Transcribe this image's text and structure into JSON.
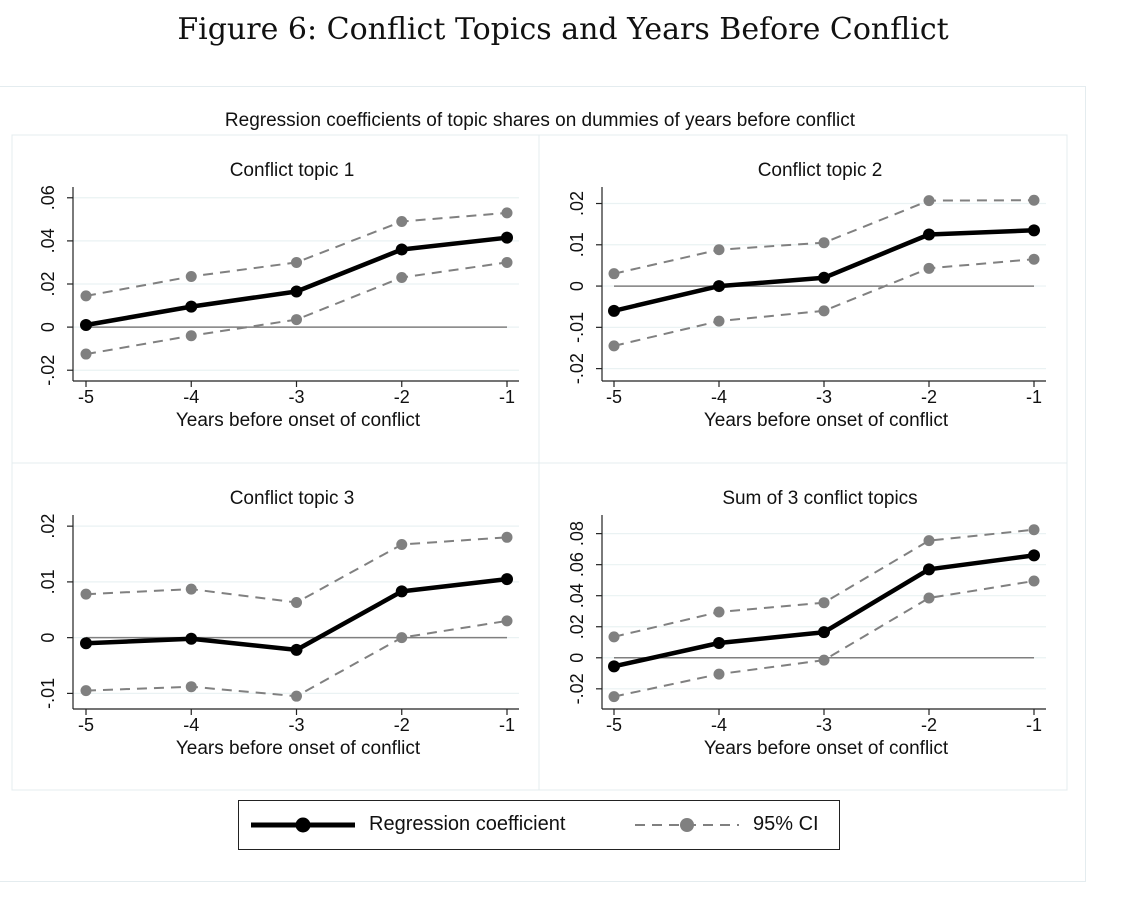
{
  "figure_title": "Figure 6: Conflict Topics and Years Before Conflict",
  "overall_title": "Regression coefficients of topic shares on dummies of years before conflict",
  "legend": {
    "coef_label": "Regression coefficient",
    "ci_label": "95% CI",
    "position": "bottom"
  },
  "colors": {
    "coefficient": "#000000",
    "ci": "#808080",
    "zero_line": "#7f7f7f",
    "gridline": "#eaf2f3",
    "panel_border": "#e4ecef"
  },
  "chart_data": [
    {
      "type": "line",
      "title": "Conflict topic 1",
      "xlabel": "Years before onset of conflict",
      "ylabel": "",
      "x": [
        -5,
        -4,
        -3,
        -2,
        -1
      ],
      "xticks": [
        "-5",
        "-4",
        "-3",
        "-2",
        "-1"
      ],
      "ylim": [
        -0.025,
        0.065
      ],
      "yticks": [
        -0.02,
        0,
        0.02,
        0.04,
        0.06
      ],
      "ytick_labels": [
        "-.02",
        "0",
        ".02",
        ".04",
        ".06"
      ],
      "grid": true,
      "series": [
        {
          "name": "Regression coefficient",
          "role": "coef",
          "values": [
            0.001,
            0.0095,
            0.0165,
            0.036,
            0.0415
          ]
        },
        {
          "name": "95% CI",
          "role": "ci",
          "values": [
            0.0145,
            0.0235,
            0.03,
            0.049,
            0.053
          ]
        },
        {
          "name": "95% CI",
          "role": "ci",
          "values": [
            -0.0125,
            -0.004,
            0.0035,
            0.023,
            0.03
          ]
        }
      ]
    },
    {
      "type": "line",
      "title": "Conflict topic 2",
      "xlabel": "Years before onset of conflict",
      "ylabel": "",
      "x": [
        -5,
        -4,
        -3,
        -2,
        -1
      ],
      "xticks": [
        "-5",
        "-4",
        "-3",
        "-2",
        "-1"
      ],
      "ylim": [
        -0.023,
        0.024
      ],
      "yticks": [
        -0.02,
        -0.01,
        0,
        0.01,
        0.02
      ],
      "ytick_labels": [
        "-.02",
        "-.01",
        "0",
        ".01",
        ".02"
      ],
      "grid": true,
      "series": [
        {
          "name": "Regression coefficient",
          "role": "coef",
          "values": [
            -0.006,
            0.0,
            0.002,
            0.0125,
            0.0135
          ]
        },
        {
          "name": "95% CI",
          "role": "ci",
          "values": [
            0.003,
            0.0088,
            0.0105,
            0.0207,
            0.0208
          ]
        },
        {
          "name": "95% CI",
          "role": "ci",
          "values": [
            -0.0145,
            -0.0085,
            -0.006,
            0.0043,
            0.0065
          ]
        }
      ]
    },
    {
      "type": "line",
      "title": "Conflict topic 3",
      "xlabel": "Years before onset of conflict",
      "ylabel": "",
      "x": [
        -5,
        -4,
        -3,
        -2,
        -1
      ],
      "xticks": [
        "-5",
        "-4",
        "-3",
        "-2",
        "-1"
      ],
      "ylim": [
        -0.0128,
        0.022
      ],
      "yticks": [
        -0.01,
        0,
        0.01,
        0.02
      ],
      "ytick_labels": [
        "-.01",
        "0",
        ".01",
        ".02"
      ],
      "grid": true,
      "series": [
        {
          "name": "Regression coefficient",
          "role": "coef",
          "values": [
            -0.001,
            -0.0002,
            -0.0022,
            0.0083,
            0.0105
          ]
        },
        {
          "name": "95% CI",
          "role": "ci",
          "values": [
            0.0078,
            0.0087,
            0.0063,
            0.0167,
            0.018
          ]
        },
        {
          "name": "95% CI",
          "role": "ci",
          "values": [
            -0.0095,
            -0.0088,
            -0.0105,
            0.0,
            0.003
          ]
        }
      ]
    },
    {
      "type": "line",
      "title": "Sum of 3 conflict topics",
      "xlabel": "Years before onset of conflict",
      "ylabel": "",
      "x": [
        -5,
        -4,
        -3,
        -2,
        -1
      ],
      "xticks": [
        "-5",
        "-4",
        "-3",
        "-2",
        "-1"
      ],
      "ylim": [
        -0.033,
        0.092
      ],
      "yticks": [
        -0.02,
        0,
        0.02,
        0.04,
        0.06,
        0.08
      ],
      "ytick_labels": [
        "-.02",
        "0",
        ".02",
        ".04",
        ".06",
        ".08"
      ],
      "grid": true,
      "series": [
        {
          "name": "Regression coefficient",
          "role": "coef",
          "values": [
            -0.0055,
            0.0095,
            0.0165,
            0.057,
            0.066
          ]
        },
        {
          "name": "95% CI",
          "role": "ci",
          "values": [
            0.0135,
            0.0295,
            0.0355,
            0.0755,
            0.0825
          ]
        },
        {
          "name": "95% CI",
          "role": "ci",
          "values": [
            -0.025,
            -0.0105,
            -0.0015,
            0.0385,
            0.0495
          ]
        }
      ]
    }
  ]
}
